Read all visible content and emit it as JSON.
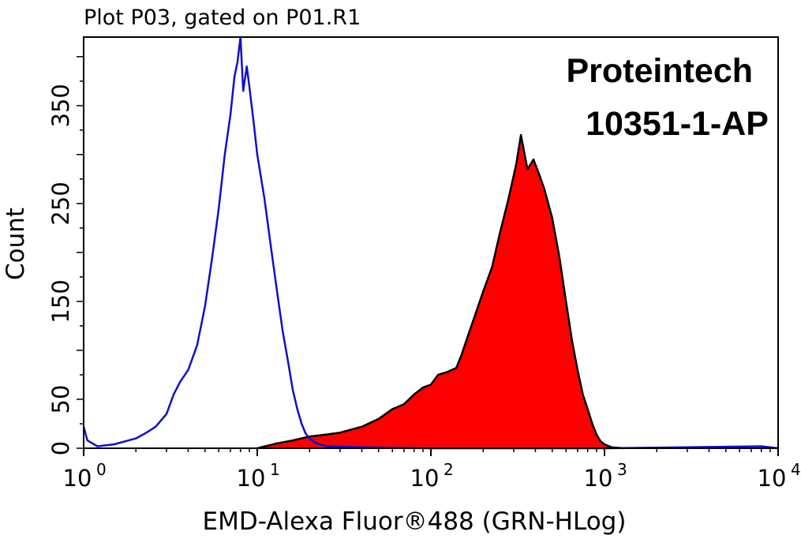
{
  "chart_data": {
    "type": "area",
    "title": "Plot P03, gated on P01.R1",
    "xlabel": "EMD-Alexa Fluor®488 (GRN-HLog)",
    "ylabel": "Count",
    "x_scale": "log",
    "xlim": [
      1,
      10000
    ],
    "ylim": [
      0,
      420
    ],
    "x_ticks": [
      {
        "base": "10",
        "exp": "0",
        "value": 1
      },
      {
        "base": "10",
        "exp": "1",
        "value": 10
      },
      {
        "base": "10",
        "exp": "2",
        "value": 100
      },
      {
        "base": "10",
        "exp": "3",
        "value": 1000
      },
      {
        "base": "10",
        "exp": "4",
        "value": 10000
      }
    ],
    "y_ticks": [
      "0",
      "50",
      "150",
      "250",
      "350"
    ],
    "y_tick_values": [
      0,
      50,
      150,
      250,
      350
    ],
    "annotations": [
      "Proteintech",
      "10351-1-AP"
    ],
    "series": [
      {
        "color": "#1010c8",
        "style": "line",
        "points": [
          [
            1.0,
            22
          ],
          [
            1.05,
            8
          ],
          [
            1.2,
            2
          ],
          [
            1.5,
            4
          ],
          [
            2.0,
            10
          ],
          [
            2.3,
            16
          ],
          [
            2.6,
            22
          ],
          [
            3.0,
            35
          ],
          [
            3.3,
            55
          ],
          [
            3.6,
            68
          ],
          [
            4.0,
            80
          ],
          [
            4.5,
            105
          ],
          [
            5.0,
            145
          ],
          [
            5.5,
            195
          ],
          [
            6.0,
            245
          ],
          [
            6.5,
            300
          ],
          [
            7.0,
            340
          ],
          [
            7.4,
            380
          ],
          [
            7.7,
            395
          ],
          [
            8.0,
            420
          ],
          [
            8.3,
            365
          ],
          [
            8.7,
            390
          ],
          [
            9.0,
            370
          ],
          [
            9.5,
            335
          ],
          [
            10.0,
            300
          ],
          [
            11.0,
            255
          ],
          [
            12.0,
            205
          ],
          [
            13.0,
            160
          ],
          [
            14.0,
            120
          ],
          [
            15.0,
            90
          ],
          [
            16.0,
            60
          ],
          [
            17.0,
            40
          ],
          [
            18.0,
            25
          ],
          [
            19.0,
            15
          ],
          [
            20.0,
            10
          ],
          [
            22.0,
            5
          ],
          [
            25.0,
            2
          ],
          [
            40.0,
            1
          ],
          [
            100.0,
            0
          ],
          [
            1000.0,
            0
          ],
          [
            8000.0,
            2
          ],
          [
            10000.0,
            0
          ]
        ]
      },
      {
        "color": "#ff0000",
        "style": "filled",
        "points": [
          [
            10.0,
            0
          ],
          [
            13.0,
            5
          ],
          [
            16.0,
            8
          ],
          [
            20.0,
            12
          ],
          [
            25.0,
            14
          ],
          [
            30.0,
            16
          ],
          [
            40.0,
            22
          ],
          [
            50.0,
            30
          ],
          [
            60.0,
            40
          ],
          [
            70.0,
            45
          ],
          [
            80.0,
            55
          ],
          [
            90.0,
            62
          ],
          [
            100.0,
            65
          ],
          [
            110.0,
            75
          ],
          [
            125.0,
            78
          ],
          [
            140.0,
            82
          ],
          [
            150.0,
            95
          ],
          [
            160.0,
            110
          ],
          [
            175.0,
            130
          ],
          [
            200.0,
            160
          ],
          [
            225.0,
            185
          ],
          [
            250.0,
            220
          ],
          [
            280.0,
            255
          ],
          [
            310.0,
            290
          ],
          [
            330.0,
            320
          ],
          [
            360.0,
            285
          ],
          [
            390.0,
            295
          ],
          [
            420.0,
            280
          ],
          [
            450.0,
            265
          ],
          [
            500.0,
            235
          ],
          [
            550.0,
            195
          ],
          [
            600.0,
            150
          ],
          [
            650.0,
            110
          ],
          [
            700.0,
            80
          ],
          [
            750.0,
            55
          ],
          [
            800.0,
            40
          ],
          [
            850.0,
            25
          ],
          [
            900.0,
            14
          ],
          [
            950.0,
            7
          ],
          [
            1000.0,
            4
          ],
          [
            1100.0,
            1
          ],
          [
            1300.0,
            0
          ]
        ]
      }
    ]
  }
}
